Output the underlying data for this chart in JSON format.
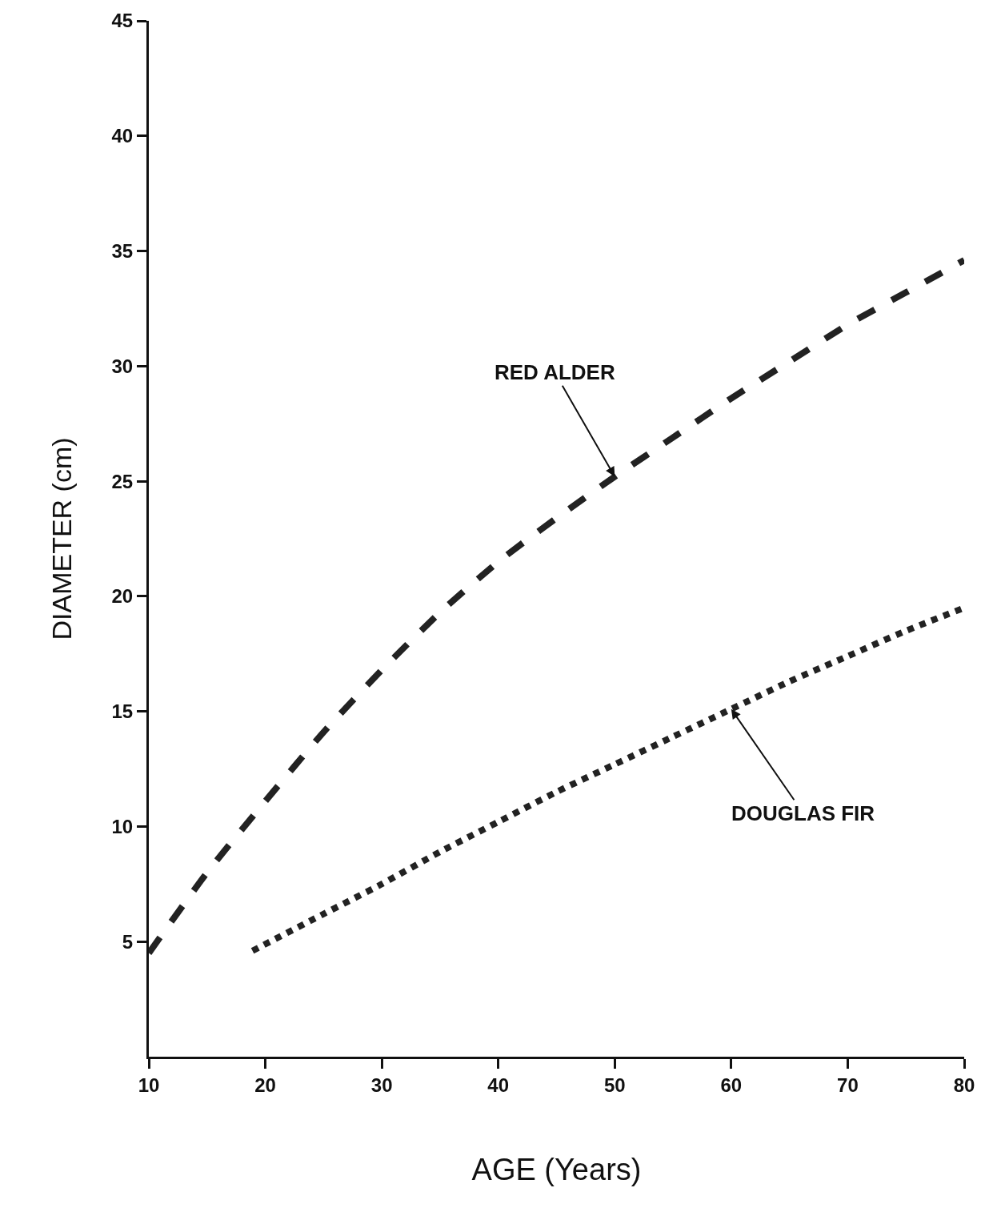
{
  "chart_data": {
    "type": "line",
    "xlabel": "AGE (Years)",
    "ylabel": "DIAMETER (cm)",
    "xlim": [
      10,
      80
    ],
    "xticks": [
      10,
      20,
      30,
      40,
      50,
      60,
      70,
      80
    ],
    "ylim": [
      0,
      45
    ],
    "yticks": [
      5,
      10,
      15,
      20,
      25,
      30,
      35,
      40,
      45
    ],
    "marker": "none",
    "series": [
      {
        "color": "#222222",
        "line_style": "dashed",
        "x": [
          10,
          15,
          20,
          25,
          30,
          35,
          40,
          45,
          50,
          55,
          60,
          65,
          70,
          75,
          80
        ],
        "values": [
          4.5,
          8.0,
          11.1,
          14.1,
          16.8,
          19.3,
          21.5,
          23.4,
          25.2,
          26.9,
          28.6,
          30.2,
          31.8,
          33.2,
          34.6
        ]
      },
      {
        "color": "#222222",
        "line_style": "dotted",
        "x": [
          18.9,
          25,
          30,
          35,
          40,
          45,
          50,
          55,
          60,
          65,
          70,
          75,
          80
        ],
        "values": [
          4.6,
          6.2,
          7.5,
          8.9,
          10.2,
          11.5,
          12.7,
          13.9,
          15.1,
          16.3,
          17.4,
          18.5,
          19.5
        ]
      }
    ],
    "annotations": [
      {
        "text": "RED ALDER",
        "x": 50,
        "y": 25.2
      },
      {
        "text": "DOUGLAS FIR",
        "x": 60,
        "y": 15.1
      }
    ]
  }
}
